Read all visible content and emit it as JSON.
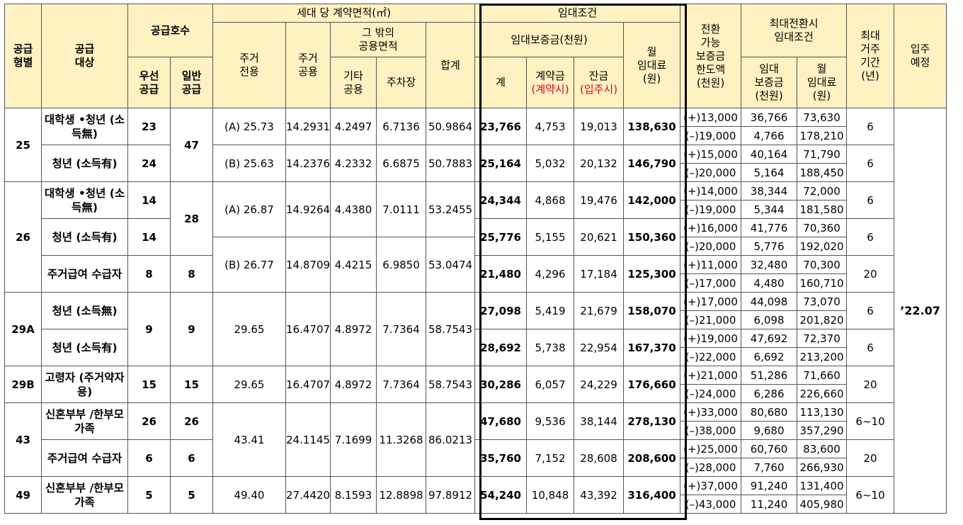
{
  "headers": {
    "type": "공급\n형별",
    "target": "공급\n대상",
    "units": "공급호수",
    "units_priority": "우선\n공급",
    "units_general": "일반\n공급",
    "area": "세대 당 계약면적(㎡)",
    "resid_exclusive": "주거\n전용",
    "resid_common": "주거\n공용",
    "other_common": "그 밖의\n공용면적",
    "other_use": "기타\n공용",
    "parking": "주차장",
    "area_total": "합계",
    "lease": "임대조건",
    "deposit": "임대보증금(천원)",
    "deposit_total": "계",
    "contract_money": "계약금",
    "contract_note": "(계약시)",
    "balance": "잔금",
    "balance_note": "(입주시)",
    "monthly_rent": "월\n임대료\n(원)",
    "conv_limit": "전환\n가능\n보증금\n한도액\n(천원)",
    "max_conv": "최대전환시\n임대조건",
    "max_deposit": "임대\n보증금\n(천원)",
    "max_rent": "월\n임대료\n(원)",
    "max_period": "최대\n거주\n기간\n(년)",
    "move_in": "입주\n예정"
  },
  "types": [
    {
      "type": "25",
      "units_general": "47",
      "area_rows": [
        {
          "exclusive": "(A)  25.73",
          "resid_common": "14.2931",
          "other": "4.2497",
          "parking": "6.7136",
          "total": "50.9864"
        },
        {
          "exclusive": "(B)  25.63",
          "resid_common": "14.2376",
          "other": "4.2332",
          "parking": "6.6875",
          "total": "50.7883"
        }
      ],
      "groups": [
        {
          "target": "대학생 •청년\n(소득無)",
          "priority": "23",
          "deposit": "23,766",
          "contract": "4,753",
          "balance": "19,013",
          "rent": "138,630",
          "conv": [
            [
              "(+)13,000",
              "36,766",
              "73,630"
            ],
            [
              "(–)19,000",
              "4,766",
              "178,210"
            ]
          ],
          "period": "6"
        },
        {
          "target": "청년\n(소득有)",
          "priority": "24",
          "deposit": "25,164",
          "contract": "5,032",
          "balance": "20,132",
          "rent": "146,790",
          "conv": [
            [
              "(+)15,000",
              "40,164",
              "71,790"
            ],
            [
              "(–)20,000",
              "5,164",
              "188,450"
            ]
          ],
          "period": "6"
        }
      ]
    },
    {
      "type": "26",
      "units_general": "28",
      "area_rows": [
        {
          "exclusive": "(A)  26.87",
          "resid_common": "14.9264",
          "other": "4.4380",
          "parking": "7.0111",
          "total": "53.2455"
        },
        {
          "exclusive": "(B)  26.77",
          "resid_common": "14.8709",
          "other": "4.4215",
          "parking": "6.9850",
          "total": "53.0474"
        }
      ],
      "groups": [
        {
          "target": "대학생 •청년\n(소득無)",
          "priority": "14",
          "deposit": "24,344",
          "contract": "4,868",
          "balance": "19,476",
          "rent": "142,000",
          "conv": [
            [
              "(+)14,000",
              "38,344",
              "72,000"
            ],
            [
              "(–)19,000",
              "5,344",
              "181,580"
            ]
          ],
          "period": "6"
        },
        {
          "target": "청년\n(소득有)",
          "priority": "14",
          "deposit": "25,776",
          "contract": "5,155",
          "balance": "20,621",
          "rent": "150,360",
          "conv": [
            [
              "(+)16,000",
              "41,776",
              "70,360"
            ],
            [
              "(–)20,000",
              "5,776",
              "192,020"
            ]
          ],
          "period": "6"
        },
        {
          "target": "주거급여\n수급자",
          "priority": "8",
          "general": "8",
          "deposit": "21,480",
          "contract": "4,296",
          "balance": "17,184",
          "rent": "125,300",
          "conv": [
            [
              "(+)11,000",
              "32,480",
              "70,300"
            ],
            [
              "(–)17,000",
              "4,480",
              "160,710"
            ]
          ],
          "period": "20"
        }
      ]
    },
    {
      "type": "29A",
      "area": {
        "exclusive": "29.65",
        "resid_common": "16.4707",
        "other": "4.8972",
        "parking": "7.7364",
        "total": "58.7543"
      },
      "priority": "9",
      "general": "9",
      "groups": [
        {
          "target": "청년\n(소득無)",
          "deposit": "27,098",
          "contract": "5,419",
          "balance": "21,679",
          "rent": "158,070",
          "conv": [
            [
              "(+)17,000",
              "44,098",
              "73,070"
            ],
            [
              "(–)21,000",
              "6,098",
              "201,820"
            ]
          ],
          "period": "6"
        },
        {
          "target": "청년\n(소득有)",
          "deposit": "28,692",
          "contract": "5,738",
          "balance": "22,954",
          "rent": "167,370",
          "conv": [
            [
              "(+)19,000",
              "47,692",
              "72,370"
            ],
            [
              "(–)22,000",
              "6,692",
              "213,200"
            ]
          ],
          "period": "6"
        }
      ]
    },
    {
      "type": "29B",
      "area": {
        "exclusive": "29.65",
        "resid_common": "16.4707",
        "other": "4.8972",
        "parking": "7.7364",
        "total": "58.7543"
      },
      "groups": [
        {
          "target": "고령자\n(주거약자용)",
          "priority": "15",
          "general": "15",
          "deposit": "30,286",
          "contract": "6,057",
          "balance": "24,229",
          "rent": "176,660",
          "conv": [
            [
              "(+)21,000",
              "51,286",
              "71,660"
            ],
            [
              "(–)24,000",
              "6,286",
              "226,660"
            ]
          ],
          "period": "20"
        }
      ]
    },
    {
      "type": "43",
      "area": {
        "exclusive": "43.41",
        "resid_common": "24.1145",
        "other": "7.1699",
        "parking": "11.3268",
        "total": "86.0213"
      },
      "groups": [
        {
          "target": "신혼부부\n/한부모가족",
          "priority": "26",
          "general": "26",
          "deposit": "47,680",
          "contract": "9,536",
          "balance": "38,144",
          "rent": "278,130",
          "conv": [
            [
              "(+)33,000",
              "80,680",
              "113,130"
            ],
            [
              "(–)38,000",
              "9,680",
              "357,290"
            ]
          ],
          "period": "6~10"
        },
        {
          "target": "주거급여\n수급자",
          "priority": "6",
          "general": "6",
          "deposit": "35,760",
          "contract": "7,152",
          "balance": "28,608",
          "rent": "208,600",
          "conv": [
            [
              "(+)25,000",
              "60,760",
              "83,600"
            ],
            [
              "(–)28,000",
              "7,760",
              "266,930"
            ]
          ],
          "period": "20"
        }
      ]
    },
    {
      "type": "49",
      "area": {
        "exclusive": "49.40",
        "resid_common": "27.4420",
        "other": "8.1593",
        "parking": "12.8898",
        "total": "97.8912"
      },
      "groups": [
        {
          "target": "신혼부부\n/한부모가족",
          "priority": "5",
          "general": "5",
          "deposit": "54,240",
          "contract": "10,848",
          "balance": "43,392",
          "rent": "316,400",
          "conv": [
            [
              "(+)37,000",
              "91,240",
              "131,400"
            ],
            [
              "(–)43,000",
              "11,240",
              "405,980"
            ]
          ],
          "period": "6~10"
        }
      ]
    }
  ],
  "move_in_date": "’22.07"
}
